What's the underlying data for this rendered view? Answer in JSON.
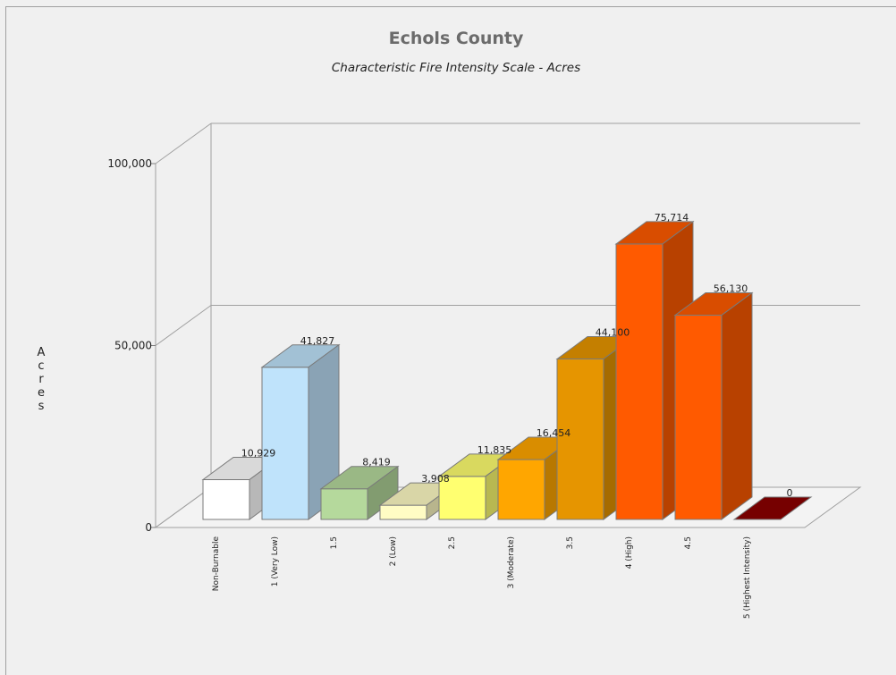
{
  "chart_data": {
    "type": "bar",
    "title": "Echols County",
    "subtitle": "Characteristic Fire Intensity Scale - Acres",
    "ylabel": "Acres",
    "ylim": [
      0,
      100000
    ],
    "yticks": [
      0,
      50000,
      100000
    ],
    "ytick_labels": [
      "0",
      "50,000",
      "100,000"
    ],
    "categories": [
      "Non-Burnable",
      "1 (Very Low)",
      "1.5",
      "2 (Low)",
      "2.5",
      "3 (Moderate)",
      "3.5",
      "4 (High)",
      "4.5",
      "5 (Highest Intensity)"
    ],
    "values": [
      10929,
      41827,
      8419,
      3908,
      11835,
      16454,
      44100,
      75714,
      56130,
      0
    ],
    "value_labels": [
      "10,929",
      "41,827",
      "8,419",
      "3,908",
      "11,835",
      "16,454",
      "44,100",
      "75,714",
      "56,130",
      "0"
    ],
    "colors": [
      "#ffffff",
      "#bfe3fb",
      "#b5d99c",
      "#fffcc4",
      "#ffff70",
      "#ffa600",
      "#e69500",
      "#ff5a00",
      "#ff5a00",
      "#8b0000"
    ],
    "grid": true,
    "legend": "none",
    "style": "3d"
  }
}
